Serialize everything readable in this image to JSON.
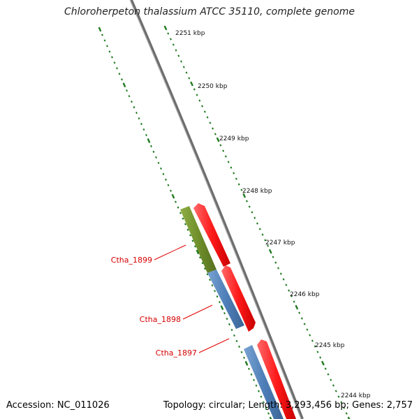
{
  "title": "Chloroherpeton thalassium ATCC 35110, complete genome",
  "footer": {
    "accession": "Accession: NC_011026",
    "summary": "Topology: circular; Length: 3,293,456 bp; Genes: 2,757"
  },
  "colors": {
    "backbone": "#8a8a8a",
    "tick": "#1f7a1f",
    "gene_red": "#ff1a1a",
    "gene_blue": "#4f7fb8",
    "gene_olive": "#6f8f2c",
    "label": "#d40000"
  },
  "kbp_ticks": [
    "2251 kbp",
    "2250 kbp",
    "2249 kbp",
    "2248 kbp",
    "2247 kbp",
    "2246 kbp",
    "2245 kbp",
    "2244 kbp"
  ],
  "gene_labels": [
    "Ctha_1899",
    "Ctha_1898",
    "Ctha_1897"
  ]
}
